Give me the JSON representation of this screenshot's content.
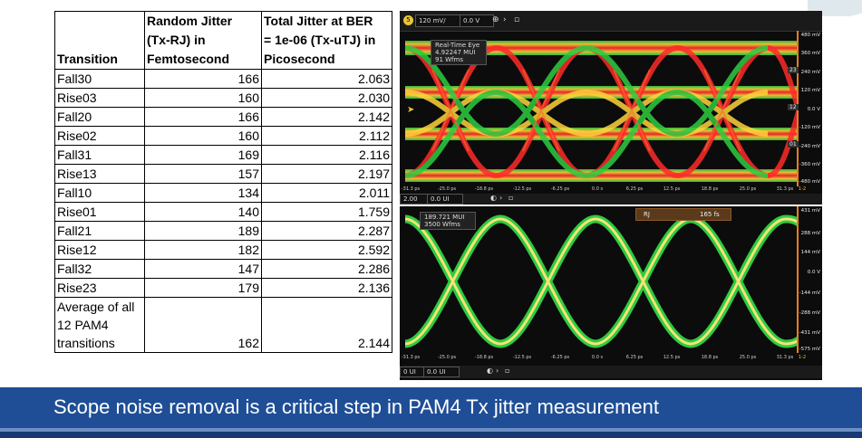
{
  "table": {
    "headers": {
      "transition": "Transition",
      "rj_lines": [
        "Random Jitter",
        "(Tx-RJ) in",
        "Femtosecond"
      ],
      "tj_lines": [
        "Total Jitter at BER",
        "= 1e-06 (Tx-uTJ) in",
        "Picosecond"
      ]
    },
    "rows": [
      {
        "transition": "Fall30",
        "rj": "166",
        "tj": "2.063"
      },
      {
        "transition": "Rise03",
        "rj": "160",
        "tj": "2.030"
      },
      {
        "transition": "Fall20",
        "rj": "166",
        "tj": "2.142"
      },
      {
        "transition": "Rise02",
        "rj": "160",
        "tj": "2.112"
      },
      {
        "transition": "Fall31",
        "rj": "169",
        "tj": "2.116"
      },
      {
        "transition": "Rise13",
        "rj": "157",
        "tj": "2.197"
      },
      {
        "transition": "Fall10",
        "rj": "134",
        "tj": "2.011"
      },
      {
        "transition": "Rise01",
        "rj": "140",
        "tj": "1.759"
      },
      {
        "transition": "Fall21",
        "rj": "189",
        "tj": "2.287"
      },
      {
        "transition": "Rise12",
        "rj": "182",
        "tj": "2.592"
      },
      {
        "transition": "Fall32",
        "rj": "147",
        "tj": "2.286"
      },
      {
        "transition": "Rise23",
        "rj": "179",
        "tj": "2.136"
      }
    ],
    "average": {
      "label_lines": [
        "Average of all",
        "12 PAM4",
        "transitions"
      ],
      "rj": "162",
      "tj": "2.144"
    }
  },
  "top_scope": {
    "channel_badge": "5",
    "scale": "120 mV/",
    "offset": "0.0 V",
    "info_lines": [
      "Real-Time Eye",
      "4.92247 MUI",
      "91 Wfms"
    ],
    "y_labels": [
      "480 mV",
      "360 mV",
      "240 mV",
      "120 mV",
      "0.0 V",
      "-120 mV",
      "-240 mV",
      "-360 mV",
      "-480 mV"
    ],
    "markers": [
      "23",
      "12",
      "01"
    ],
    "x_labels": [
      "-31.3 ps",
      "-25.0 ps",
      "-18.8 ps",
      "-12.5 ps",
      "-6.25 ps",
      "0.0 s",
      "6.25 ps",
      "12.5 ps",
      "18.8 ps",
      "25.0 ps",
      "31.3 ps"
    ],
    "x_end": "1-2",
    "ui_scale": "2.00 UI",
    "ui_offset": "0.0 UI"
  },
  "bottom_scope": {
    "info_lines": [
      "189.721 MUI",
      "3500 Wfms"
    ],
    "meas_label": "RJ",
    "meas_value": "165 fs",
    "y_labels": [
      "431 mV",
      "288 mV",
      "144 mV",
      "0.0 V",
      "-144 mV",
      "-288 mV",
      "-431 mV",
      "-575 mV"
    ],
    "x_labels": [
      "-31.3 ps",
      "-25.0 ps",
      "-18.8 ps",
      "-12.5 ps",
      "-6.25 ps",
      "0.0 s",
      "6.25 ps",
      "12.5 ps",
      "18.8 ps",
      "25.0 ps",
      "31.3 ps"
    ],
    "x_end": "1-2",
    "ui_scale": "0 UI",
    "ui_offset": "0.0 UI"
  },
  "banner": {
    "text": "Scope noise removal is a critical step in PAM4 Tx jitter measurement"
  },
  "colors": {
    "banner": "#1f4e96",
    "trace_hot": "#ff2a2a",
    "trace_mid": "#ffd23a",
    "trace_cool": "#2ecc40"
  }
}
